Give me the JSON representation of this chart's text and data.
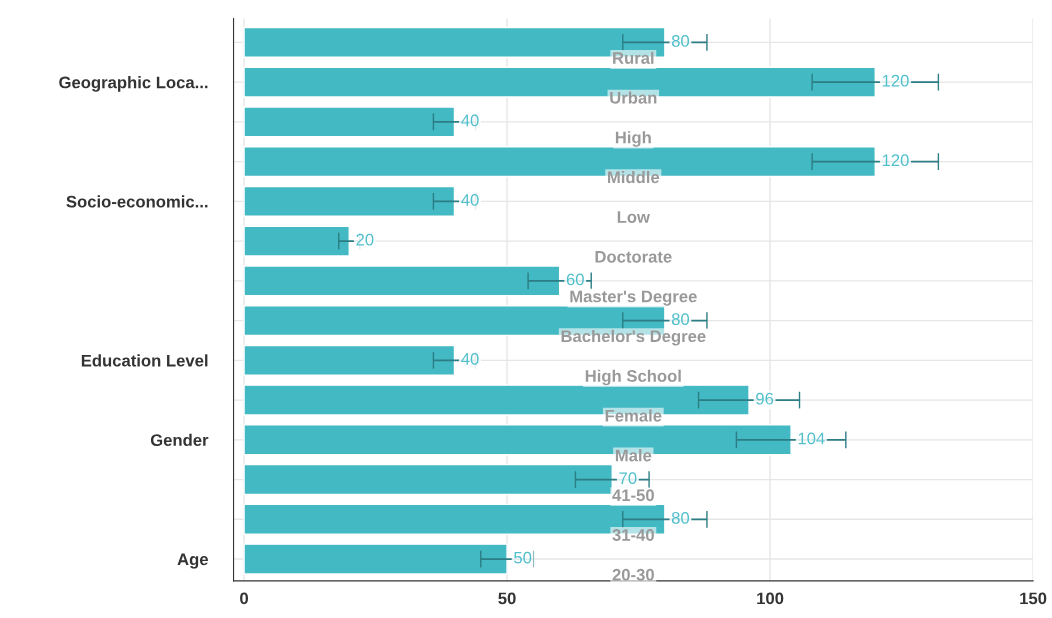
{
  "chart_data": {
    "type": "bar",
    "orientation": "horizontal",
    "categories": [
      null,
      "Geographic Loca...",
      null,
      null,
      "Socio-economic...",
      null,
      null,
      null,
      "Education Level",
      null,
      "Gender",
      null,
      null,
      "Age"
    ],
    "values": [
      80,
      120,
      40,
      120,
      40,
      20,
      60,
      80,
      40,
      96,
      104,
      70,
      80,
      50
    ],
    "errors": [
      8,
      12,
      4,
      12,
      4,
      2,
      6,
      8,
      4,
      9.6,
      10.4,
      7,
      8,
      5
    ],
    "color": "#42b9c3",
    "xlim": [
      -2,
      150
    ],
    "xticks": [
      0,
      50,
      100,
      150
    ],
    "grid": true,
    "data_labels": true,
    "annotations": [
      "Rural",
      "Urban",
      "High",
      "Middle",
      "Low",
      "Doctorate",
      "Master's Degree",
      "Bachelor's Degree",
      "High School",
      "Female",
      "Male",
      "41-50",
      "31-40",
      "20-30"
    ]
  }
}
